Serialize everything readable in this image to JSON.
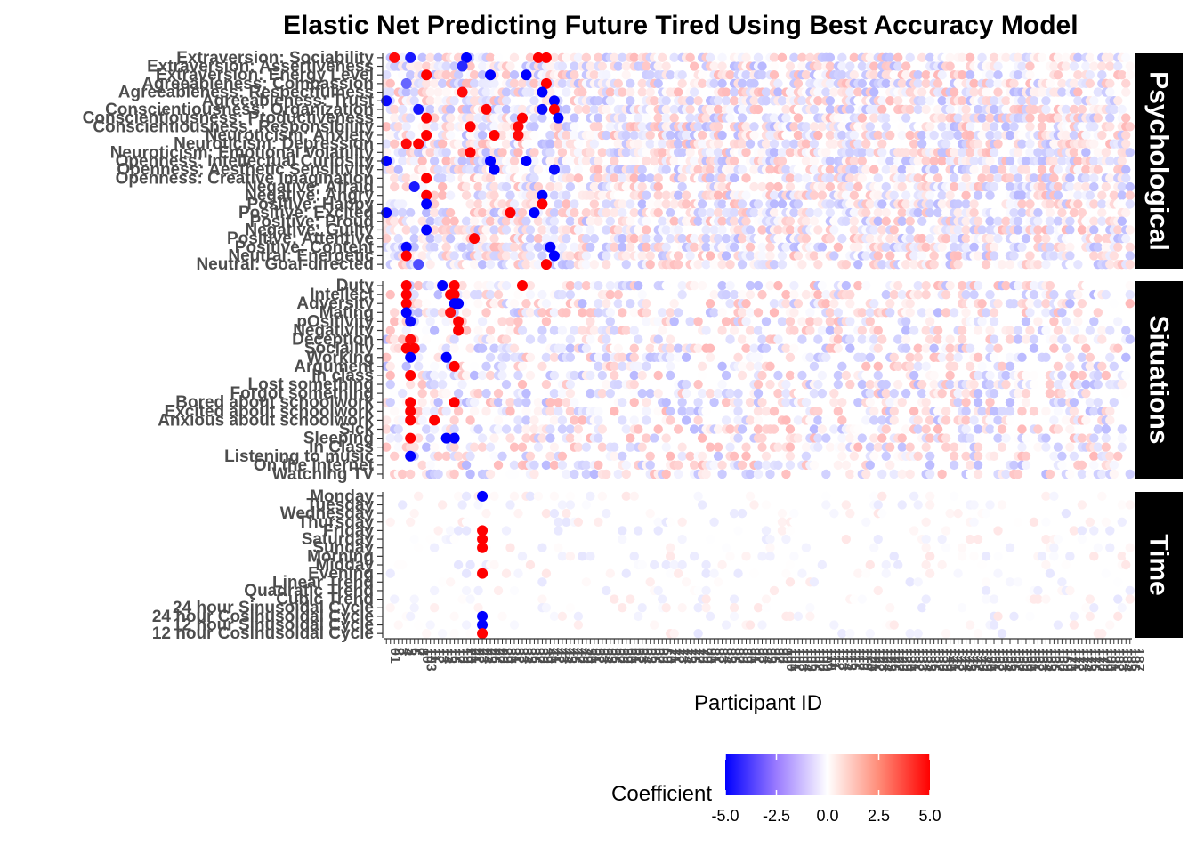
{
  "chart_data": {
    "type": "heatmap",
    "title": "Elastic Net Predicting Future Tired Using Best Accuracy Model",
    "xlabel": "Participant ID",
    "ylabel": "",
    "legend": {
      "title": "Coefficient",
      "ticks": [
        "-5.0",
        "-2.5",
        "0.0",
        "2.5",
        "5.0"
      ],
      "range": [
        -5,
        5
      ],
      "low_color": "#0000ff",
      "mid_color": "#ffffff",
      "high_color": "#ff0000",
      "position": "bottom"
    },
    "panels": [
      {
        "name": "Psychological",
        "rows": [
          "Extraversion: Sociability",
          "Extraversion: Assertiveness",
          "Extraversion: Energy Level",
          "Agreeableness: Compassion",
          "Agreeableness: Respectfulness",
          "Agreeableness: Trust",
          "Conscientiousness: Organization",
          "Conscientiousness: Productiveness",
          "Conscientiousness: Responsibility",
          "Neuroticism: Anxiety",
          "Neuroticism: Depression",
          "Neuroticism: Emotional Volatility",
          "Openness: Intellectual Curiosity",
          "Openness: Aesthetic Sensitivity",
          "Openness: Creative Imagination",
          "Negative: Afraid",
          "Negative: Angry",
          "Positive: Happy",
          "Positive: Excited",
          "Positive: Proud",
          "Negative: Guilty",
          "Positive: Attentive",
          "Positive: Content",
          "Neutral: Energetic",
          "Neutral: Goal-directed"
        ],
        "cells": [
          [
            0,
            2,
            4.8
          ],
          [
            0,
            6,
            -4.5
          ],
          [
            0,
            20,
            -5.0
          ],
          [
            0,
            38,
            5.0
          ],
          [
            0,
            40,
            5.0
          ],
          [
            1,
            19,
            -4.2
          ],
          [
            2,
            10,
            5.0
          ],
          [
            2,
            26,
            -5.0
          ],
          [
            2,
            35,
            -5.0
          ],
          [
            3,
            40,
            5.0
          ],
          [
            3,
            5,
            -3.0
          ],
          [
            4,
            19,
            4.8
          ],
          [
            4,
            39,
            -5.0
          ],
          [
            5,
            0,
            -4.8
          ],
          [
            5,
            42,
            -5.0
          ],
          [
            6,
            8,
            -4.6
          ],
          [
            6,
            25,
            5.0
          ],
          [
            6,
            39,
            -4.8
          ],
          [
            6,
            42,
            5.0
          ],
          [
            7,
            10,
            5.0
          ],
          [
            7,
            34,
            5.0
          ],
          [
            7,
            43,
            -5.0
          ],
          [
            8,
            21,
            5.0
          ],
          [
            8,
            33,
            4.9
          ],
          [
            9,
            10,
            5.0
          ],
          [
            9,
            27,
            5.0
          ],
          [
            9,
            33,
            4.8
          ],
          [
            10,
            8,
            5.0
          ],
          [
            10,
            5,
            4.8
          ],
          [
            11,
            21,
            5.0
          ],
          [
            12,
            0,
            -5.0
          ],
          [
            12,
            26,
            -5.0
          ],
          [
            12,
            35,
            -5.0
          ],
          [
            13,
            27,
            -5.0
          ],
          [
            13,
            42,
            -4.8
          ],
          [
            14,
            10,
            5.0
          ],
          [
            15,
            7,
            -4.5
          ],
          [
            16,
            10,
            5.0
          ],
          [
            16,
            39,
            -5.0
          ],
          [
            17,
            10,
            -5.0
          ],
          [
            17,
            39,
            5.0
          ],
          [
            18,
            0,
            -5.0
          ],
          [
            18,
            37,
            -5.0
          ],
          [
            18,
            31,
            5.0
          ],
          [
            20,
            10,
            -5.0
          ],
          [
            21,
            22,
            5.0
          ],
          [
            22,
            5,
            -4.9
          ],
          [
            22,
            41,
            -5.0
          ],
          [
            23,
            5,
            5.0
          ],
          [
            23,
            42,
            -5.0
          ],
          [
            24,
            40,
            5.0
          ],
          [
            24,
            8,
            -3.5
          ]
        ]
      },
      {
        "name": "Situations",
        "rows": [
          "Duty",
          "Intellect",
          "Adversity",
          "Mating",
          "pOsitivity",
          "Negativity",
          "Deception",
          "Sociality",
          "Working",
          "Argument",
          "In class",
          "Lost something",
          "Forgot something",
          "Bored about schoolwork",
          "Excited about schoolwork",
          "Anxious about schoolwork",
          "Sick",
          "Sleeping",
          "In Class",
          "Listening to music",
          "On the internet",
          "Watching TV"
        ],
        "cells": [
          [
            0,
            5,
            5.0
          ],
          [
            0,
            14,
            -5.0
          ],
          [
            0,
            17,
            5.0
          ],
          [
            0,
            34,
            5.0
          ],
          [
            1,
            5,
            5.0
          ],
          [
            1,
            16,
            5.0
          ],
          [
            1,
            17,
            5.0
          ],
          [
            2,
            17,
            -5.0
          ],
          [
            2,
            18,
            -5.0
          ],
          [
            2,
            5,
            5.0
          ],
          [
            3,
            5,
            -5.0
          ],
          [
            3,
            16,
            4.8
          ],
          [
            4,
            6,
            -4.8
          ],
          [
            4,
            18,
            5.0
          ],
          [
            5,
            18,
            5.0
          ],
          [
            6,
            6,
            4.8
          ],
          [
            7,
            5,
            5.0
          ],
          [
            7,
            7,
            5.0
          ],
          [
            8,
            6,
            -5.0
          ],
          [
            8,
            15,
            -5.0
          ],
          [
            9,
            17,
            5.0
          ],
          [
            10,
            6,
            5.0
          ],
          [
            13,
            6,
            5.0
          ],
          [
            13,
            17,
            5.0
          ],
          [
            14,
            6,
            5.0
          ],
          [
            15,
            6,
            5.0
          ],
          [
            15,
            12,
            5.0
          ],
          [
            17,
            6,
            5.0
          ],
          [
            17,
            15,
            -5.0
          ],
          [
            17,
            17,
            -5.0
          ],
          [
            19,
            6,
            -5.0
          ]
        ]
      },
      {
        "name": "Time",
        "rows": [
          "Monday",
          "Tuesday",
          "Wednesday",
          "Thursday",
          "Friday",
          "Saturday",
          "Sunday",
          "Morning",
          "Midday",
          "Evening",
          "Linear Trend",
          "Quadratic Trend",
          "Cubic Trend",
          "24 hour Sinusoidal Cycle",
          "24 hour Cosinusoidal Cycle",
          "12 hour Sinusoidal Cycle",
          "12 hour Cosinusoidal Cycle"
        ],
        "cells": [
          [
            0,
            24,
            -5.0
          ],
          [
            4,
            24,
            5.0
          ],
          [
            5,
            24,
            5.0
          ],
          [
            6,
            24,
            5.0
          ],
          [
            9,
            24,
            5.0
          ],
          [
            14,
            24,
            -5.0
          ],
          [
            15,
            24,
            -5.0
          ],
          [
            16,
            24,
            5.0
          ]
        ]
      }
    ],
    "participants": [
      "01",
      "2",
      "3",
      "4",
      "5",
      "6",
      "7",
      "8",
      "10",
      "103",
      "11",
      "12",
      "13",
      "14",
      "15",
      "16",
      "17",
      "18",
      "19",
      "20",
      "21",
      "22",
      "23",
      "24",
      "25",
      "26",
      "27",
      "28",
      "29",
      "30",
      "31",
      "32",
      "33",
      "34",
      "35",
      "36",
      "37",
      "38",
      "39",
      "40",
      "41",
      "42",
      "43",
      "44",
      "45",
      "46",
      "47",
      "48",
      "49",
      "50",
      "51",
      "52",
      "53",
      "54",
      "55",
      "56",
      "57",
      "58",
      "59",
      "60",
      "61",
      "62",
      "63",
      "64",
      "65",
      "66",
      "67",
      "68",
      "69",
      "70",
      "71",
      "72",
      "73",
      "74",
      "75",
      "76",
      "77",
      "78",
      "79",
      "80",
      "81",
      "82",
      "83",
      "84",
      "85",
      "86",
      "87",
      "88",
      "89",
      "90",
      "91",
      "92",
      "93",
      "94",
      "95",
      "96",
      "97",
      "98",
      "99",
      "100",
      "101",
      "102",
      "103",
      "104",
      "105",
      "106",
      "107",
      "108",
      "109",
      "110",
      "111",
      "112",
      "113",
      "114",
      "115",
      "116",
      "117",
      "118",
      "119",
      "120",
      "121",
      "122",
      "123",
      "124",
      "125",
      "126",
      "127",
      "128",
      "129",
      "130",
      "131",
      "132",
      "133",
      "134",
      "135",
      "136",
      "137",
      "138",
      "139",
      "140",
      "141",
      "142",
      "143",
      "144",
      "145",
      "146",
      "147",
      "148",
      "149",
      "150",
      "151",
      "152",
      "153",
      "154",
      "155",
      "156",
      "157",
      "158",
      "159",
      "160",
      "161",
      "162",
      "163",
      "164",
      "165",
      "166",
      "167",
      "168",
      "169",
      "170",
      "171",
      "172",
      "173",
      "174",
      "175",
      "176",
      "177",
      "178",
      "179",
      "180",
      "181",
      "182",
      "183",
      "184",
      "185",
      "186",
      "187"
    ]
  }
}
